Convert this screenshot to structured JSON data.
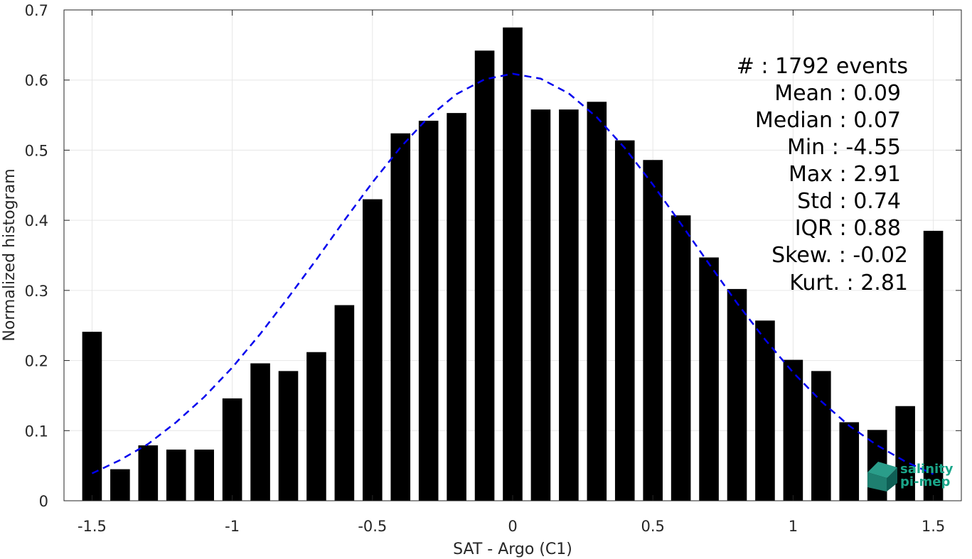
{
  "chart_data": {
    "type": "bar",
    "xlabel": "SAT - Argo (C1)",
    "ylabel": "Normalized histogram",
    "xlim": [
      -1.6,
      1.6
    ],
    "ylim": [
      0,
      0.7
    ],
    "grid": true,
    "x_ticks": [
      -1.5,
      -1,
      -0.5,
      0,
      0.5,
      1,
      1.5
    ],
    "x_tick_labels": [
      "-1.5",
      "-1",
      "-0.5",
      "0",
      "0.5",
      "1",
      "1.5"
    ],
    "y_ticks": [
      0,
      0.1,
      0.2,
      0.3,
      0.4,
      0.5,
      0.6,
      0.7
    ],
    "y_tick_labels": [
      "0",
      "0.1",
      "0.2",
      "0.3",
      "0.4",
      "0.5",
      "0.6",
      "0.7"
    ],
    "bar_color": "#000000",
    "bar_width": 0.07,
    "bars": {
      "x": [
        -1.5,
        -1.4,
        -1.3,
        -1.2,
        -1.1,
        -1.0,
        -0.9,
        -0.8,
        -0.7,
        -0.6,
        -0.5,
        -0.4,
        -0.3,
        -0.2,
        -0.1,
        0.0,
        0.1,
        0.2,
        0.3,
        0.4,
        0.5,
        0.6,
        0.7,
        0.8,
        0.9,
        1.0,
        1.1,
        1.2,
        1.3,
        1.4,
        1.5
      ],
      "values": [
        0.241,
        0.045,
        0.079,
        0.073,
        0.073,
        0.146,
        0.196,
        0.185,
        0.212,
        0.279,
        0.43,
        0.524,
        0.542,
        0.553,
        0.642,
        0.675,
        0.558,
        0.558,
        0.569,
        0.514,
        0.486,
        0.407,
        0.347,
        0.302,
        0.257,
        0.201,
        0.185,
        0.112,
        0.101,
        0.135,
        0.385
      ]
    },
    "fit_curve": {
      "style": "dashed",
      "color": "#0000ee",
      "x": [
        -1.5,
        -1.4,
        -1.3,
        -1.2,
        -1.1,
        -1.0,
        -0.9,
        -0.8,
        -0.7,
        -0.6,
        -0.5,
        -0.4,
        -0.3,
        -0.2,
        -0.1,
        0.0,
        0.1,
        0.2,
        0.3,
        0.4,
        0.5,
        0.6,
        0.7,
        0.8,
        0.9,
        1.0,
        1.1,
        1.2,
        1.3,
        1.4,
        1.5
      ],
      "y": [
        0.039,
        0.058,
        0.081,
        0.112,
        0.148,
        0.19,
        0.238,
        0.29,
        0.344,
        0.4,
        0.454,
        0.504,
        0.547,
        0.58,
        0.601,
        0.609,
        0.602,
        0.581,
        0.547,
        0.503,
        0.451,
        0.395,
        0.338,
        0.282,
        0.23,
        0.183,
        0.142,
        0.107,
        0.079,
        0.056,
        0.038
      ]
    }
  },
  "stats": {
    "lines": [
      "#  : 1792 events",
      "Mean : 0.09",
      "Median : 0.07",
      "Min : -4.55",
      "Max : 2.91",
      "Std : 0.74",
      "IQR : 0.88",
      "Skew. : -0.02",
      "Kurt. : 2.81"
    ]
  },
  "logo": {
    "line1": "salinity",
    "line2": "pi-mep",
    "color": "#1aa68a"
  }
}
